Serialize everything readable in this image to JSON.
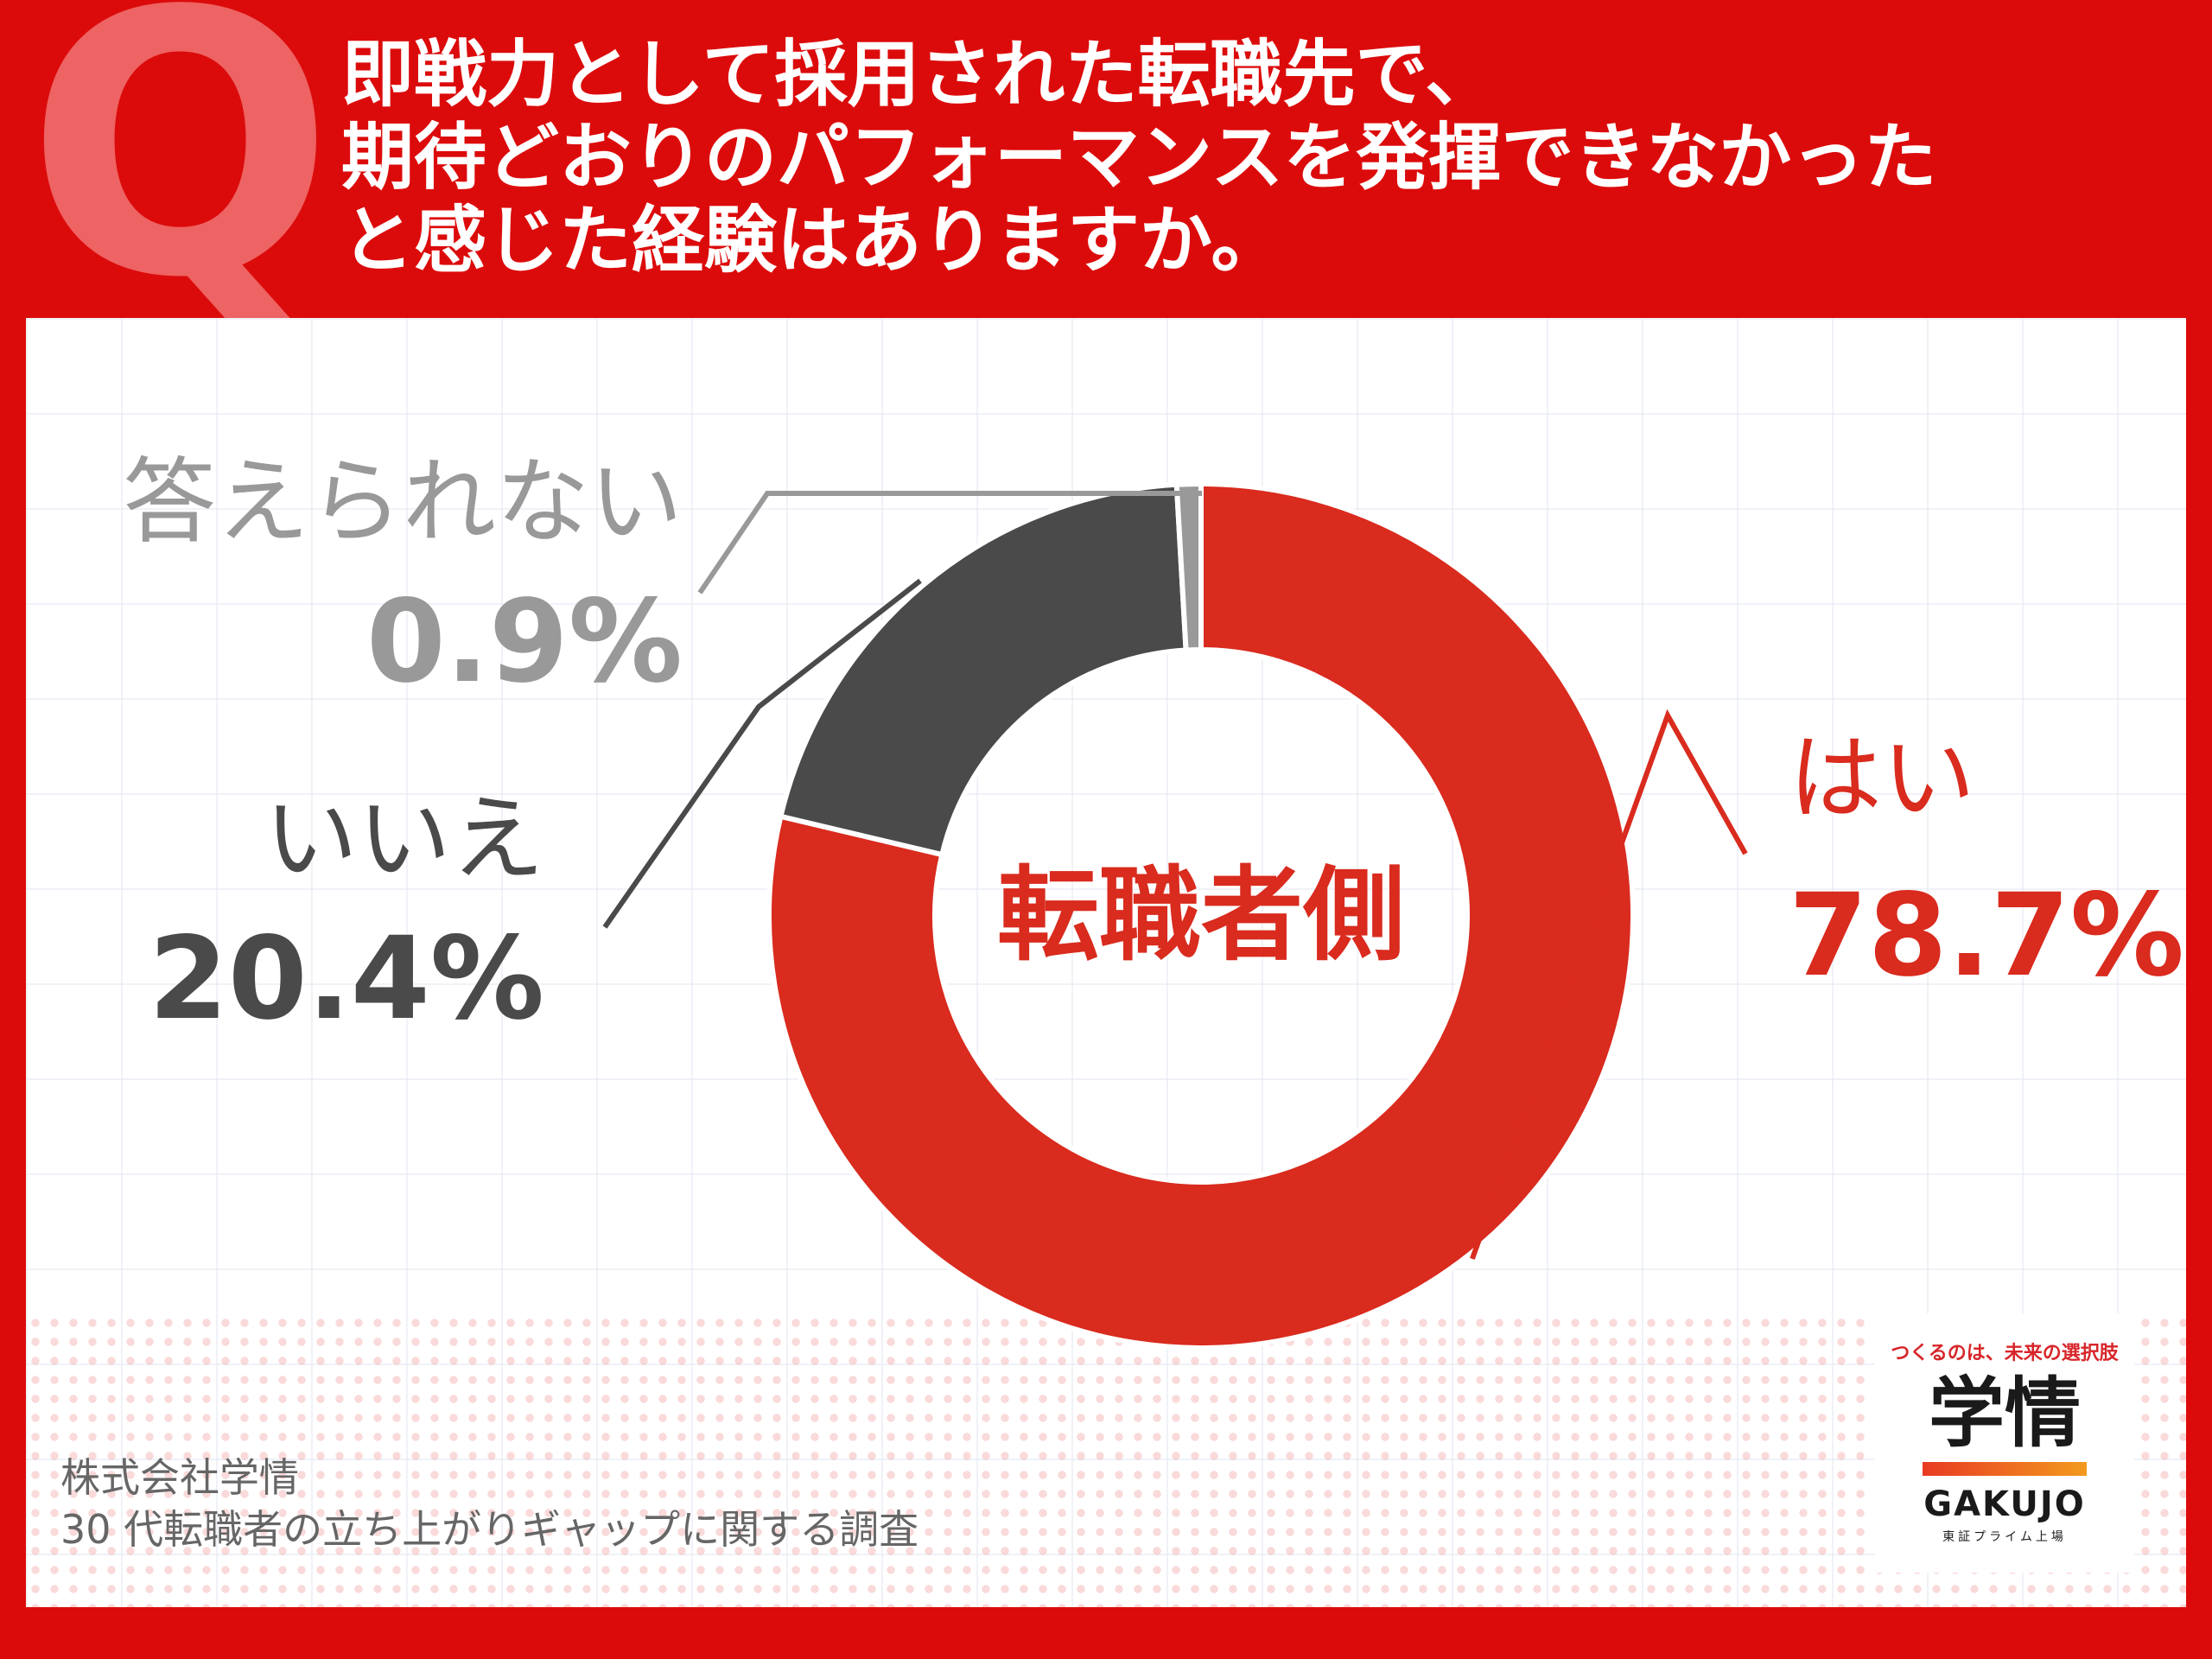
{
  "question": {
    "mark": "Q",
    "lines": [
      "即戦力として採用された転職先で、",
      "期待どおりのパフォーマンスを発揮できなかった",
      "と感じた経験はありますか。"
    ]
  },
  "chart_data": {
    "type": "pie",
    "center_label": "転職者側",
    "slices": [
      {
        "label": "はい",
        "value": 78.7,
        "value_text": "78.7%",
        "color": "#d92b1e"
      },
      {
        "label": "いいえ",
        "value": 20.4,
        "value_text": "20.4%",
        "color": "#4a4a4a"
      },
      {
        "label": "答えられない",
        "value": 0.9,
        "value_text": "0.9%",
        "color": "#999999"
      }
    ]
  },
  "credit": {
    "line1": "株式会社学情",
    "line2": "30 代転職者の立ち上がりギャップに関する調査"
  },
  "logo": {
    "tagline": "つくるのは、未来の選択肢",
    "name": "学情",
    "name_en": "GAKUJO",
    "sub": "東証プライム上場"
  }
}
